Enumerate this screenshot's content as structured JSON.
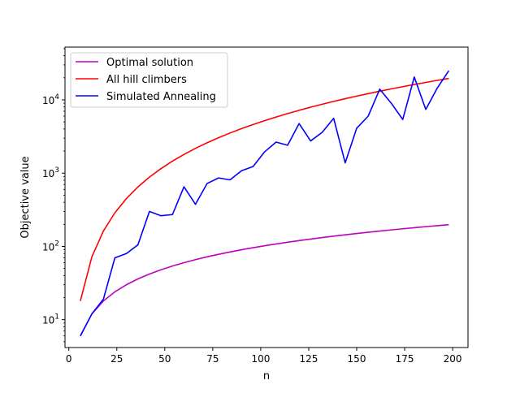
{
  "chart_data": {
    "type": "line",
    "title": "",
    "xlabel": "n",
    "ylabel": "Objective value",
    "xlim": [
      -2,
      208
    ],
    "ylim_log10": [
      0.62,
      4.72
    ],
    "yscale": "log",
    "grid": false,
    "legend_position": "top-left",
    "x_ticks": [
      0,
      25,
      50,
      75,
      100,
      125,
      150,
      175,
      200
    ],
    "x_tick_labels": [
      "0",
      "25",
      "50",
      "75",
      "100",
      "125",
      "150",
      "175",
      "200"
    ],
    "y_ticks": [
      10,
      100,
      1000,
      10000
    ],
    "y_tick_labels": [
      {
        "base": "10",
        "exp": "1"
      },
      {
        "base": "10",
        "exp": "2"
      },
      {
        "base": "10",
        "exp": "3"
      },
      {
        "base": "10",
        "exp": "4"
      }
    ],
    "series": [
      {
        "name": "Optimal solution",
        "color": "#bf00bf",
        "x": [
          6,
          12,
          18,
          24,
          30,
          36,
          42,
          48,
          54,
          60,
          66,
          72,
          78,
          84,
          90,
          96,
          102,
          108,
          114,
          120,
          126,
          132,
          138,
          144,
          150,
          156,
          162,
          168,
          174,
          180,
          186,
          192,
          198
        ],
        "y": [
          6,
          12,
          18,
          24,
          30,
          36,
          42,
          48,
          54,
          60,
          66,
          72,
          78,
          84,
          90,
          96,
          102,
          108,
          114,
          120,
          126,
          132,
          138,
          144,
          150,
          156,
          162,
          168,
          174,
          180,
          186,
          192,
          198
        ]
      },
      {
        "name": "All hill climbers",
        "color": "#ff0000",
        "x": [
          6,
          12,
          18,
          24,
          30,
          36,
          42,
          48,
          54,
          60,
          66,
          72,
          78,
          84,
          90,
          96,
          102,
          108,
          114,
          120,
          126,
          132,
          138,
          144,
          150,
          156,
          162,
          168,
          174,
          180,
          186,
          192,
          198
        ],
        "y": [
          18,
          72,
          162,
          288,
          450,
          648,
          882,
          1152,
          1458,
          1800,
          2178,
          2592,
          3042,
          3528,
          4050,
          4608,
          5202,
          5832,
          6498,
          7200,
          7938,
          8712,
          9522,
          10368,
          11250,
          12168,
          13122,
          14112,
          15138,
          16200,
          17298,
          18432,
          19602
        ]
      },
      {
        "name": "Simulated Annealing",
        "color": "#0000ff",
        "x": [
          6,
          12,
          18,
          24,
          30,
          36,
          42,
          48,
          54,
          60,
          66,
          72,
          78,
          84,
          90,
          96,
          102,
          108,
          114,
          120,
          126,
          132,
          138,
          144,
          150,
          156,
          162,
          168,
          174,
          180,
          186,
          192,
          198
        ],
        "y": [
          6,
          12,
          19,
          70,
          80,
          105,
          300,
          262,
          272,
          650,
          375,
          720,
          860,
          810,
          1080,
          1230,
          1950,
          2650,
          2400,
          4750,
          2750,
          3600,
          5600,
          1380,
          4100,
          6000,
          14000,
          9000,
          5400,
          20500,
          7400,
          14500,
          25000
        ]
      }
    ]
  }
}
